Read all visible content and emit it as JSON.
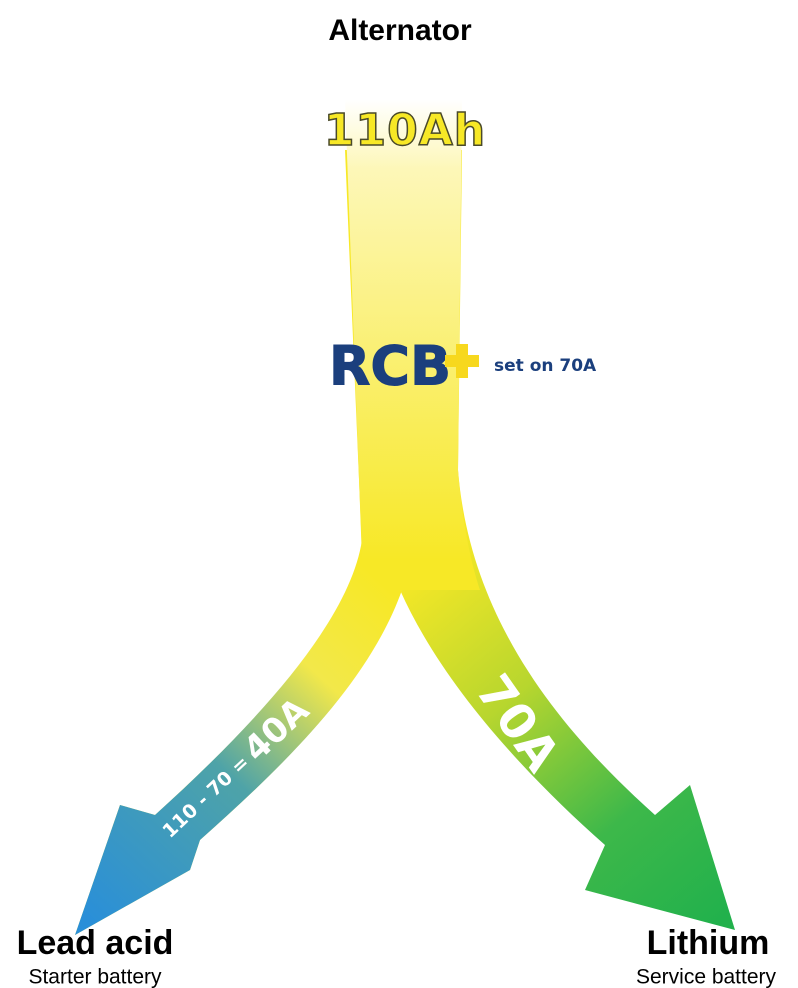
{
  "title": "Alternator",
  "source": {
    "label": "110Ah"
  },
  "controller": {
    "name": "RCB",
    "setting": "set on 70A"
  },
  "branches": [
    {
      "flow_prefix": "110 - 70 =",
      "flow": "40A",
      "label": "Lead acid",
      "sublabel": "Starter battery"
    },
    {
      "flow": "70A",
      "label": "Lithium",
      "sublabel": "Service battery"
    }
  ]
}
